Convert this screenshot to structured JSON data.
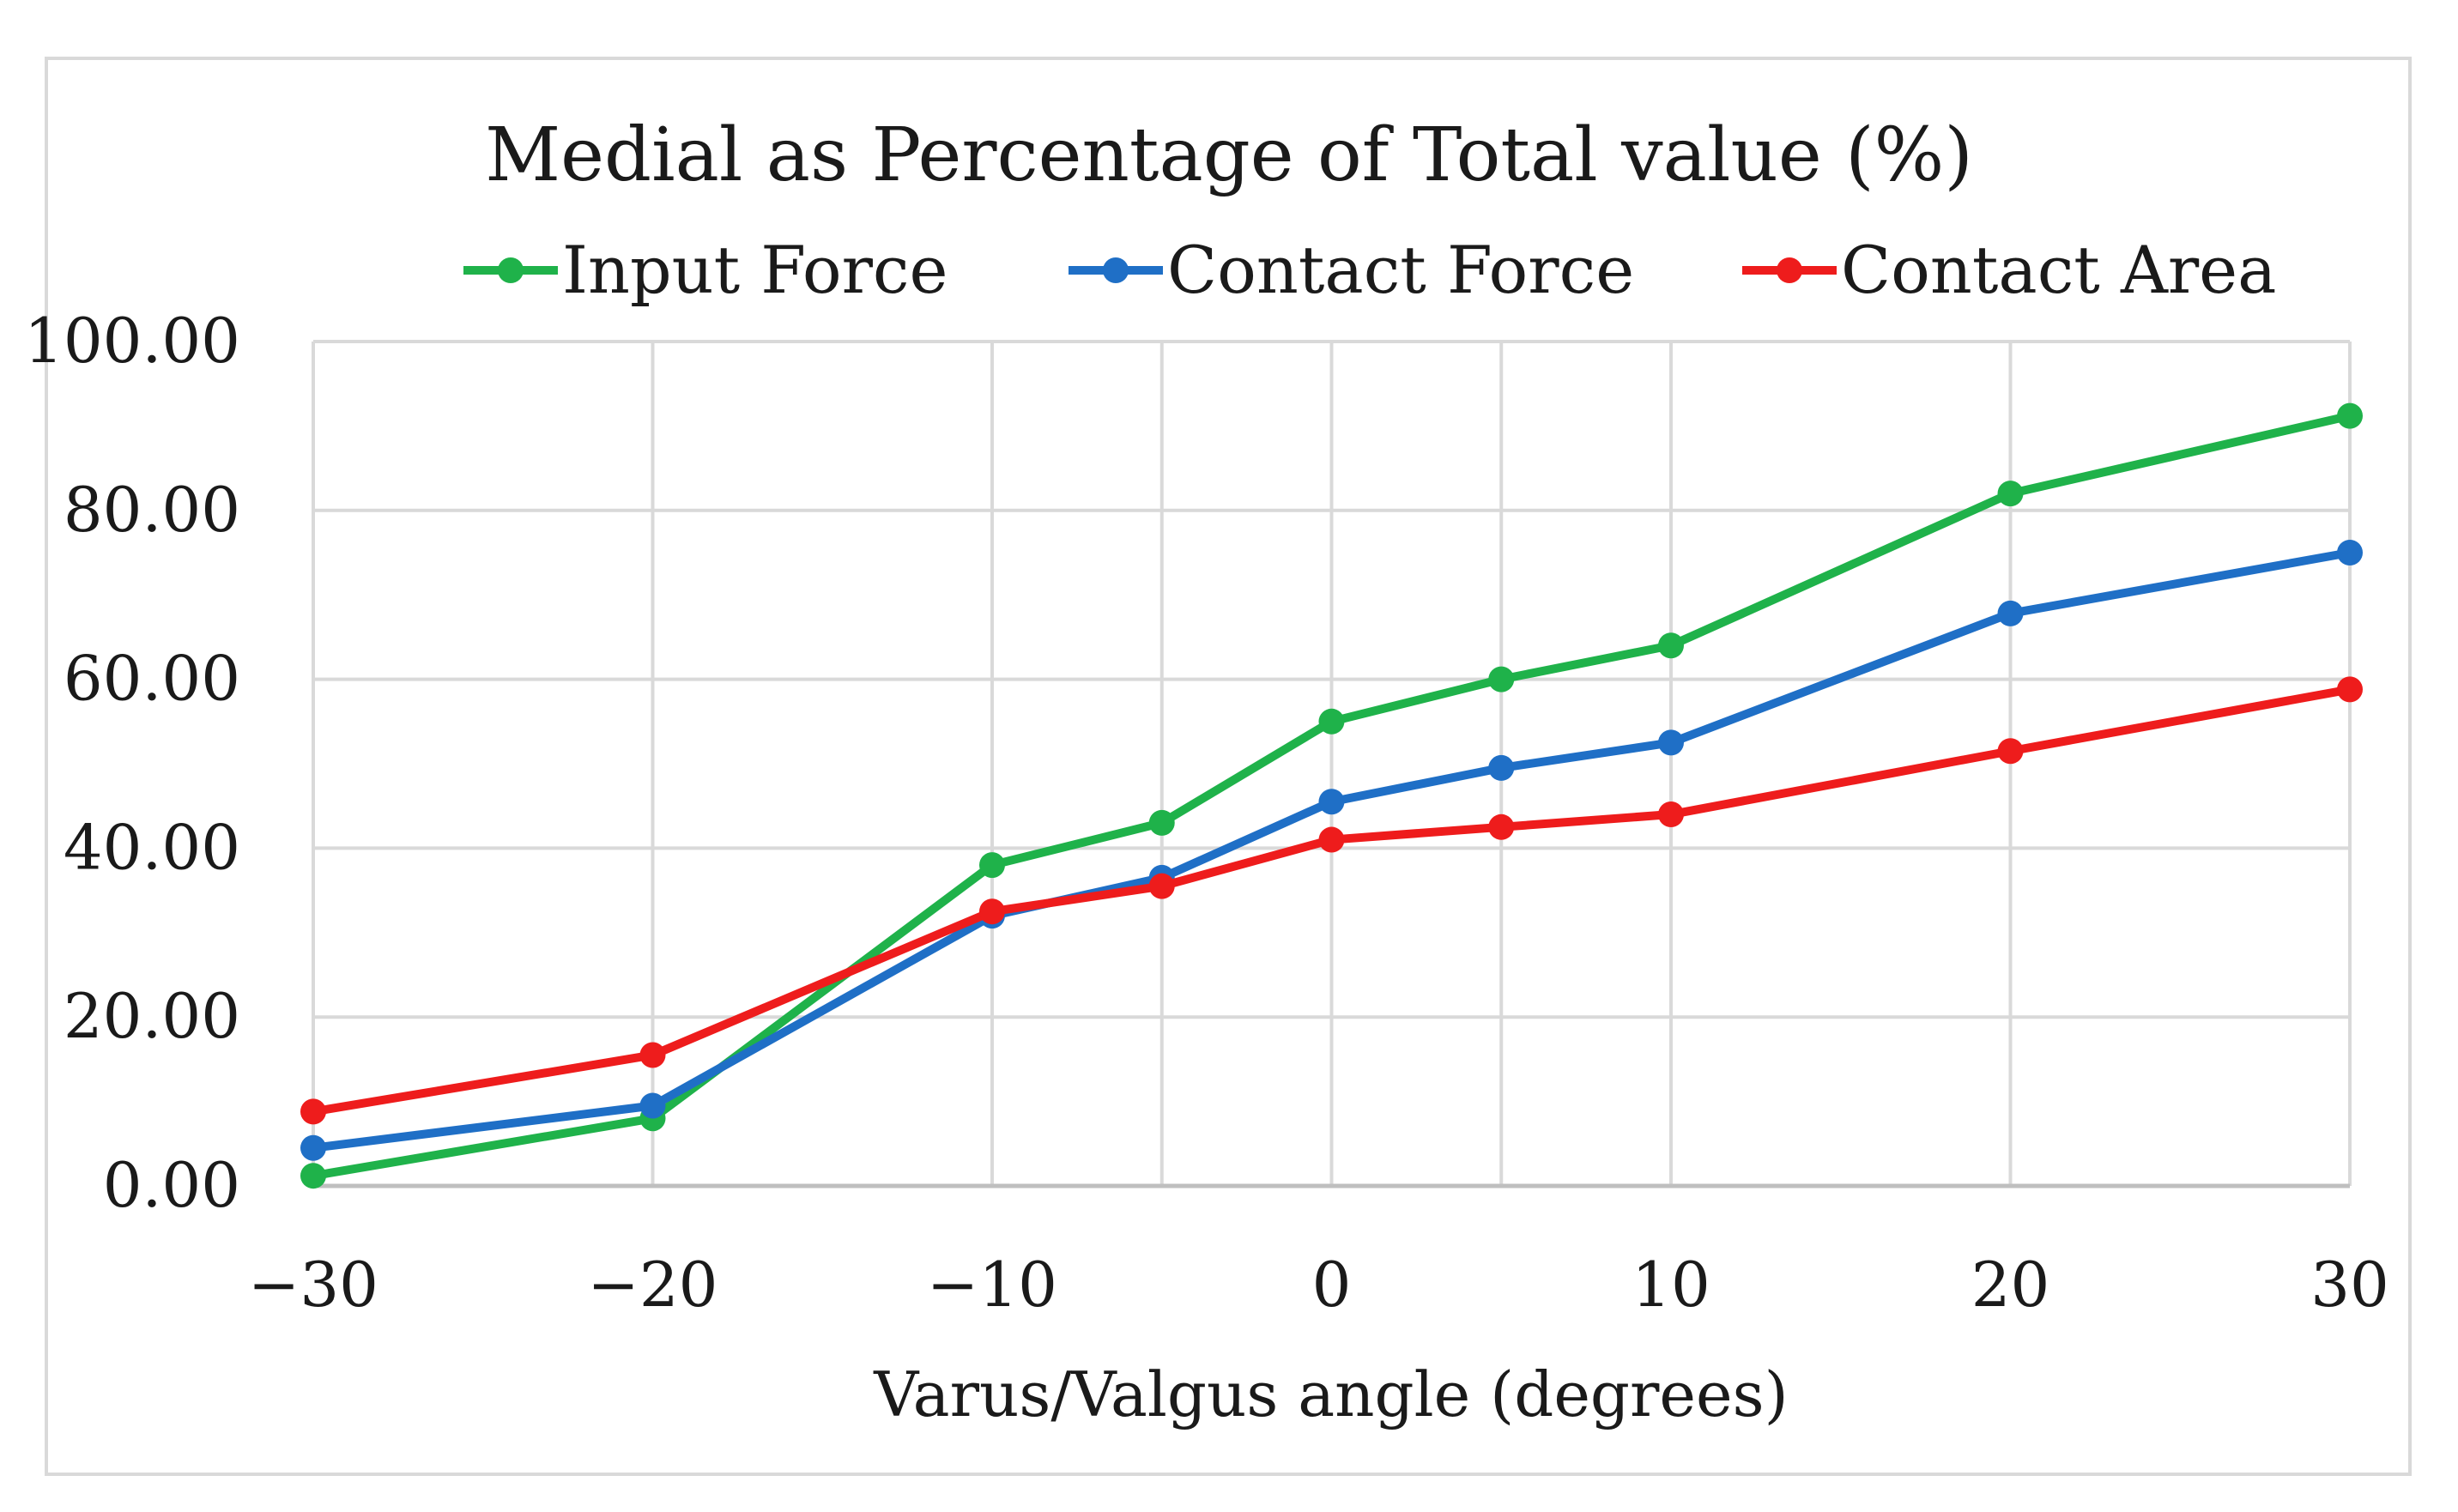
{
  "chart_data": {
    "type": "line",
    "title": "Medial as Percentage of Total value  (%)",
    "xlabel": "Varus/Valgus angle (degrees)",
    "ylabel": "",
    "x": [
      -30,
      -20,
      -10,
      -5,
      0,
      5,
      10,
      20,
      30
    ],
    "xticks": [
      -30,
      -20,
      -10,
      0,
      10,
      20,
      30
    ],
    "xtick_labels": [
      "−30",
      "−20",
      "−10",
      "0",
      "10",
      "20",
      "30"
    ],
    "xlim": [
      -30,
      30
    ],
    "ylim": [
      0,
      100
    ],
    "yticks": [
      0,
      20,
      40,
      60,
      80,
      100
    ],
    "ytick_labels": [
      "0.00",
      "20.00",
      "40.00",
      "60.00",
      "80.00",
      "100.00"
    ],
    "grid": true,
    "legend_position": "top",
    "series": [
      {
        "name": "Input Force",
        "color": "#1fb24a",
        "values": [
          1.2,
          8.0,
          38.0,
          43.0,
          55.0,
          60.0,
          64.0,
          82.0,
          91.2
        ]
      },
      {
        "name": "Contact Force",
        "color": "#1f6fc6",
        "values": [
          4.5,
          9.5,
          32.0,
          36.5,
          45.5,
          49.5,
          52.5,
          67.8,
          75.0
        ]
      },
      {
        "name": "Contact Area",
        "color": "#ee1c1c",
        "values": [
          8.8,
          15.5,
          32.5,
          35.5,
          41.0,
          42.5,
          44.0,
          51.5,
          58.8
        ]
      }
    ]
  }
}
